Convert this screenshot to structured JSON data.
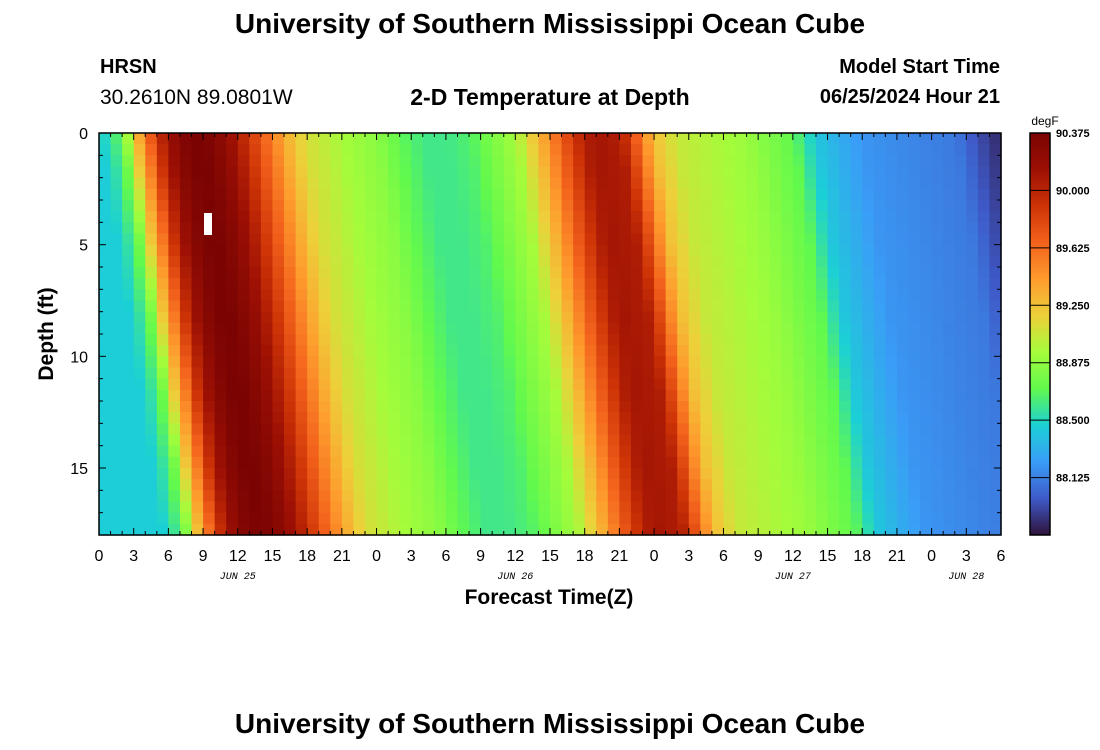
{
  "header": {
    "title": "University of Southern Mississippi Ocean Cube",
    "station": "HRSN",
    "coords": "30.2610N  89.0801W",
    "subtitle": "2-D Temperature at Depth",
    "start_label": "Model Start Time",
    "start_value": "06/25/2024 Hour 21"
  },
  "footer": {
    "title": "University of Southern Mississippi Ocean Cube"
  },
  "chart_data": {
    "type": "heatmap",
    "title": "2-D Temperature at Depth",
    "xlabel": "Forecast Time(Z)",
    "ylabel": "Depth (ft)",
    "x_tick_labels": [
      "0",
      "3",
      "6",
      "9",
      "12",
      "15",
      "18",
      "21",
      "0",
      "3",
      "6",
      "9",
      "12",
      "15",
      "18",
      "21",
      "0",
      "3",
      "6",
      "9",
      "12",
      "15",
      "18",
      "21",
      "0",
      "3",
      "6"
    ],
    "date_labels": [
      {
        "label": "JUN 25",
        "hours": 12
      },
      {
        "label": "JUN 26",
        "hours": 36
      },
      {
        "label": "JUN 27",
        "hours": 60
      },
      {
        "label": "JUN 28",
        "hours": 75
      }
    ],
    "xlim_hours": [
      0,
      78
    ],
    "y_ticks": [
      0,
      5,
      10,
      15
    ],
    "ylim": [
      0,
      18
    ],
    "y_inverted": true,
    "colorbar": {
      "unit": "degF",
      "min": 87.75,
      "max": 90.375,
      "tick_labels": [
        "90.375",
        "90.000",
        "89.625",
        "89.250",
        "88.875",
        "88.500",
        "88.125"
      ],
      "tick_values": [
        90.375,
        90.0,
        89.625,
        89.25,
        88.875,
        88.5,
        88.125
      ],
      "colors": [
        "#30123b",
        "#3e5ac8",
        "#3a9df7",
        "#1bd0d5",
        "#61f94d",
        "#a4fc3b",
        "#edd03a",
        "#fe9b2d",
        "#f3621c",
        "#cd3306",
        "#9d1004",
        "#7a0403"
      ]
    },
    "surface_profile": [
      {
        "h": 0,
        "t": 88.45
      },
      {
        "h": 1,
        "t": 88.55
      },
      {
        "h": 2,
        "t": 88.75
      },
      {
        "h": 3,
        "t": 89.2
      },
      {
        "h": 4,
        "t": 89.55
      },
      {
        "h": 5,
        "t": 89.9
      },
      {
        "h": 6,
        "t": 90.15
      },
      {
        "h": 7,
        "t": 90.3
      },
      {
        "h": 8,
        "t": 90.37
      },
      {
        "h": 9,
        "t": 90.37
      },
      {
        "h": 10,
        "t": 90.3
      },
      {
        "h": 11,
        "t": 90.2
      },
      {
        "h": 12,
        "t": 90.05
      },
      {
        "h": 14,
        "t": 89.7
      },
      {
        "h": 16,
        "t": 89.35
      },
      {
        "h": 17,
        "t": 89.2
      },
      {
        "h": 18,
        "t": 89.1
      },
      {
        "h": 21,
        "t": 88.95
      },
      {
        "h": 24,
        "t": 88.85
      },
      {
        "h": 26,
        "t": 88.7
      },
      {
        "h": 28,
        "t": 88.6
      },
      {
        "h": 30,
        "t": 88.6
      },
      {
        "h": 32,
        "t": 88.65
      },
      {
        "h": 34,
        "t": 88.8
      },
      {
        "h": 36,
        "t": 88.95
      },
      {
        "h": 38,
        "t": 89.3
      },
      {
        "h": 40,
        "t": 89.7
      },
      {
        "h": 42,
        "t": 90.05
      },
      {
        "h": 43,
        "t": 90.1
      },
      {
        "h": 45,
        "t": 90.05
      },
      {
        "h": 46,
        "t": 89.8
      },
      {
        "h": 47,
        "t": 89.5
      },
      {
        "h": 48,
        "t": 89.25
      },
      {
        "h": 50,
        "t": 89.05
      },
      {
        "h": 52,
        "t": 89.0
      },
      {
        "h": 54,
        "t": 88.95
      },
      {
        "h": 56,
        "t": 88.9
      },
      {
        "h": 58,
        "t": 88.8
      },
      {
        "h": 60,
        "t": 88.7
      },
      {
        "h": 61,
        "t": 88.55
      },
      {
        "h": 62,
        "t": 88.42
      },
      {
        "h": 64,
        "t": 88.3
      },
      {
        "h": 66,
        "t": 88.2
      },
      {
        "h": 70,
        "t": 88.15
      },
      {
        "h": 74,
        "t": 88.1
      },
      {
        "h": 76,
        "t": 87.95
      },
      {
        "h": 78,
        "t": 87.82
      }
    ]
  }
}
